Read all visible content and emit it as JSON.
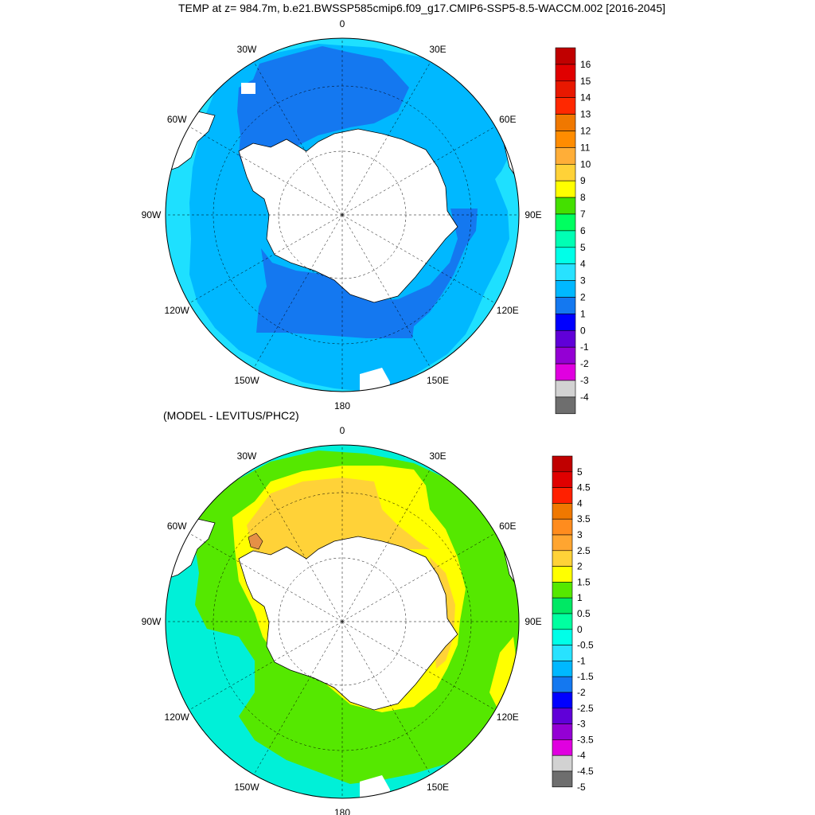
{
  "title": "TEMP at z= 984.7m, b.e21.BWSSP585cmip6.f09_g17.CMIP6-SSP5-8.5-WACCM.002 [2016-2045]",
  "subtitle": "(MODEL - LEVITUS/PHC2)",
  "lon_labels": [
    "0",
    "30E",
    "60E",
    "90E",
    "120E",
    "150E",
    "180",
    "150W",
    "120W",
    "90W",
    "60W",
    "30W"
  ],
  "top_colorbar": {
    "labels": [
      "16",
      "15",
      "14",
      "13",
      "12",
      "11",
      "10",
      "9",
      "8",
      "7",
      "6",
      "5",
      "4",
      "3",
      "2",
      "1",
      "0",
      "-1",
      "-2",
      "-3",
      "-4"
    ],
    "colors": [
      "#c00000",
      "#e00000",
      "#e81800",
      "#ff2800",
      "#f07800",
      "#ff8c00",
      "#ffae38",
      "#ffd238",
      "#ffff00",
      "#44e000",
      "#00ff60",
      "#00ffb4",
      "#00ffe8",
      "#28e2ff",
      "#00b8ff",
      "#1478f0",
      "#0000ff",
      "#6000d8",
      "#9400d4",
      "#e000e0",
      "#d2d2d2",
      "#6e6e6e"
    ]
  },
  "bottom_colorbar": {
    "labels": [
      "5",
      "4.5",
      "4",
      "3.5",
      "3",
      "2.5",
      "2",
      "1.5",
      "1",
      "0.5",
      "0",
      "-0.5",
      "-1",
      "-1.5",
      "-2",
      "-2.5",
      "-3",
      "-3.5",
      "-4",
      "-4.5",
      "-5"
    ],
    "colors": [
      "#c00000",
      "#e00000",
      "#ff2000",
      "#f07800",
      "#ff8c1e",
      "#ffa530",
      "#ffd238",
      "#ffff00",
      "#55e800",
      "#00e864",
      "#00ffa0",
      "#00ffe8",
      "#28e2ff",
      "#00b8ff",
      "#1478f0",
      "#0000ff",
      "#6000d8",
      "#9400d4",
      "#e000e0",
      "#d2d2d2",
      "#6e6e6e"
    ]
  },
  "maps": {
    "top": {
      "field": "TEMP at 984.7m",
      "colors": {
        "open_ocean_outer": "#1ee0ff",
        "open_ocean": "#00b8ff",
        "shelf_band": "#1478f0",
        "land": "#ffffff"
      }
    },
    "bottom": {
      "field": "MODEL - LEVITUS/PHC2 difference",
      "colors": {
        "cool_edge": "#00f0d8",
        "mid_band": "#55e800",
        "warm_ring": "#ffff00",
        "core": "#ffd238",
        "hot_spot": "#e59046",
        "land": "#ffffff"
      }
    }
  }
}
